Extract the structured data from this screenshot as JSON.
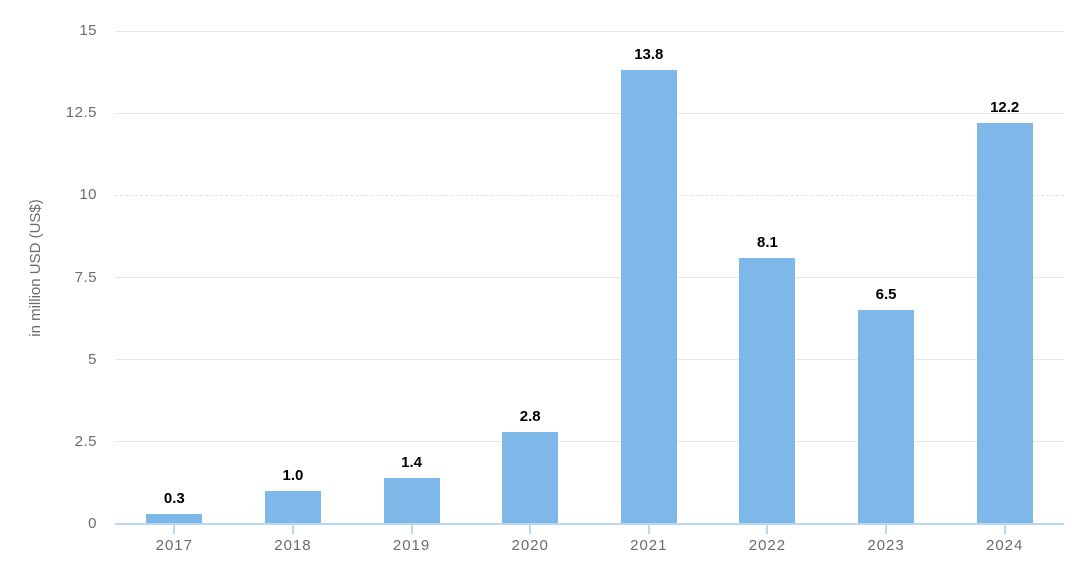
{
  "chart_data": {
    "type": "bar",
    "title": "",
    "xlabel": "",
    "ylabel": "in million USD (US$)",
    "categories": [
      "2017",
      "2018",
      "2019",
      "2020",
      "2021",
      "2022",
      "2023",
      "2024"
    ],
    "values": [
      0.3,
      1.0,
      1.4,
      2.8,
      13.8,
      8.1,
      6.5,
      12.2
    ],
    "value_labels": [
      "0.3",
      "1.0",
      "1.4",
      "2.8",
      "13.8",
      "8.1",
      "6.5",
      "12.2"
    ],
    "ylim": [
      0,
      15
    ],
    "yticks": [
      0,
      2.5,
      5,
      7.5,
      10,
      12.5,
      15
    ],
    "ytick_labels": [
      "0",
      "2.5",
      "5",
      "7.5",
      "10",
      "12.5",
      "15"
    ],
    "dashed_gridlines": [
      10
    ],
    "grid": true,
    "legend": false
  },
  "colors": {
    "bar": "#7db8e8",
    "axis": "#b9d9f1",
    "gridline": "#e7e7e7",
    "tick_text": "#6a6c6e",
    "value_text": "#000000",
    "background": "#ffffff"
  }
}
